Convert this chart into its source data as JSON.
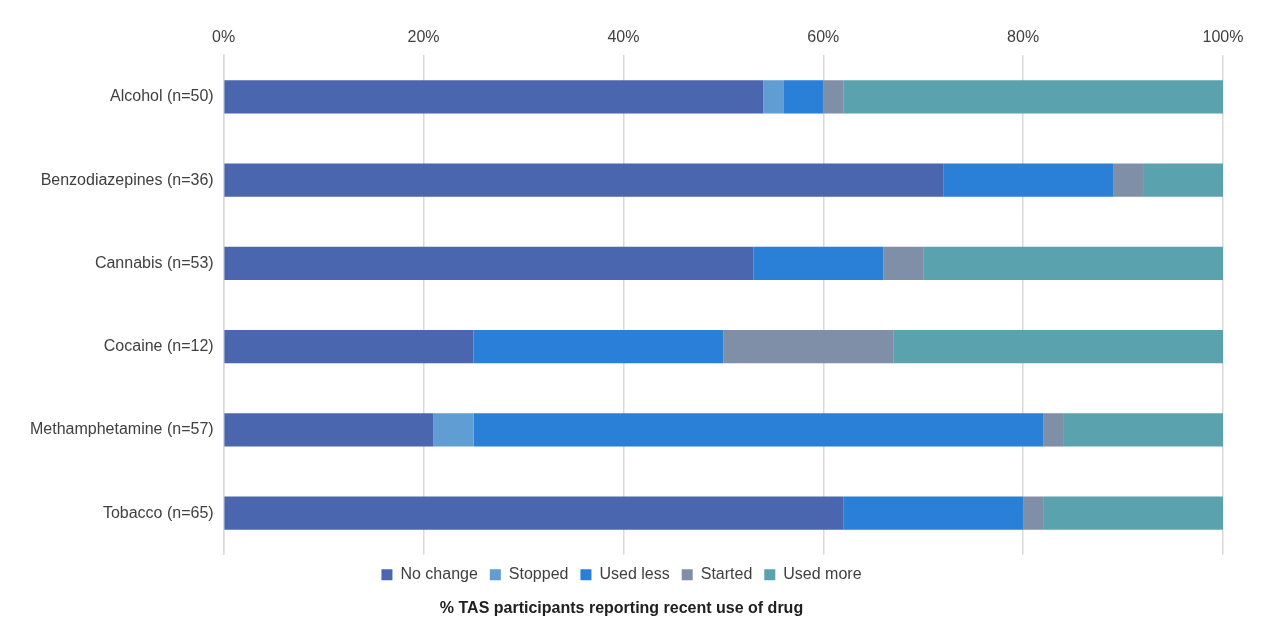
{
  "chart_data": {
    "type": "bar",
    "orientation": "horizontal",
    "stacked": true,
    "xlabel": "% TAS participants reporting recent use of drug",
    "categories": [
      "Alcohol (n=50)",
      "Benzodiazepines (n=36)",
      "Cannabis (n=53)",
      "Cocaine (n=12)",
      "Methamphetamine (n=57)",
      "Tobacco (n=65)"
    ],
    "series": [
      {
        "name": "No change",
        "color": "#4a66ae",
        "values": [
          54,
          72,
          53,
          25,
          21,
          62
        ]
      },
      {
        "name": "Stopped",
        "color": "#609dd2",
        "values": [
          2,
          0,
          0,
          0,
          4,
          0
        ]
      },
      {
        "name": "Used less",
        "color": "#2a7fd6",
        "values": [
          4,
          17,
          13,
          25,
          57,
          18
        ]
      },
      {
        "name": "Started",
        "color": "#7f8fa8",
        "values": [
          2,
          3,
          4,
          17,
          2,
          2
        ]
      },
      {
        "name": "Used more",
        "color": "#5aa2ae",
        "values": [
          38,
          8,
          30,
          33,
          16,
          18
        ]
      }
    ],
    "xlim": [
      0,
      100
    ],
    "xticks": [
      {
        "value": 0,
        "label": "0%"
      },
      {
        "value": 20,
        "label": "20%"
      },
      {
        "value": 40,
        "label": "40%"
      },
      {
        "value": 60,
        "label": "60%"
      },
      {
        "value": 80,
        "label": "80%"
      },
      {
        "value": 100,
        "label": "100%"
      }
    ],
    "grid": "x",
    "legend": "bottom"
  }
}
